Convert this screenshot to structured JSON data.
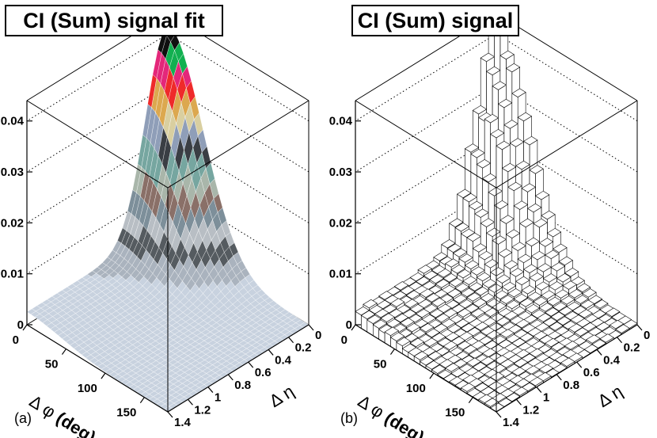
{
  "colors": {
    "palette": [
      "#c8d2df",
      "#aab3be",
      "#555b60",
      "#b8bec4",
      "#7d8f9a",
      "#8a7068",
      "#a9b6aa",
      "#76a6a0",
      "#3a3e44",
      "#8f9eb8",
      "#d9cfa0",
      "#dca84f",
      "#ef2a2a",
      "#e4277a",
      "#11b050",
      "#101010"
    ],
    "wire": "#ffffff",
    "box": "#000000",
    "grid": "#000000"
  },
  "chart_data": [
    {
      "type": "surface",
      "title": "CI (Sum) signal fit",
      "panel_label": "(a)",
      "xlabel_symbol": "Δ φ",
      "xlabel_unit": "(deg)",
      "ylabel": "Δ η",
      "phi_ticks": [
        "0",
        "50",
        "100",
        "150"
      ],
      "eta_ticks": [
        "0",
        "0.2",
        "0.4",
        "0.6",
        "0.8",
        "1",
        "1.2",
        "1.4"
      ],
      "z_ticks": [
        "0",
        "0.01",
        "0.02",
        "0.03",
        "0.04"
      ],
      "zlim": [
        0,
        0.044
      ],
      "phi_range": [
        0,
        180
      ],
      "eta_range": [
        0,
        1.4
      ],
      "model": {
        "amp": 0.042,
        "phi_width_deg": 45,
        "eta_width": 0.22,
        "eta_floor": 0.06
      },
      "render": "colored-surface"
    },
    {
      "type": "lego",
      "title": "CI (Sum) signal",
      "panel_label": "(b)",
      "xlabel_symbol": "Δ φ",
      "xlabel_unit": "(deg)",
      "ylabel": "Δ η",
      "phi_ticks": [
        "0",
        "50",
        "100",
        "150"
      ],
      "eta_ticks": [
        "0",
        "0.2",
        "0.4",
        "0.6",
        "0.8",
        "1",
        "1.2",
        "1.4"
      ],
      "z_ticks": [
        "0",
        "0.01",
        "0.02",
        "0.03",
        "0.04"
      ],
      "zlim": [
        0,
        0.044
      ],
      "phi_range": [
        0,
        180
      ],
      "eta_range": [
        0,
        1.4
      ],
      "model": {
        "amp": 0.042,
        "phi_width_deg": 45,
        "eta_width": 0.22,
        "eta_floor": 0.06
      },
      "render": "lego-histogram"
    }
  ]
}
